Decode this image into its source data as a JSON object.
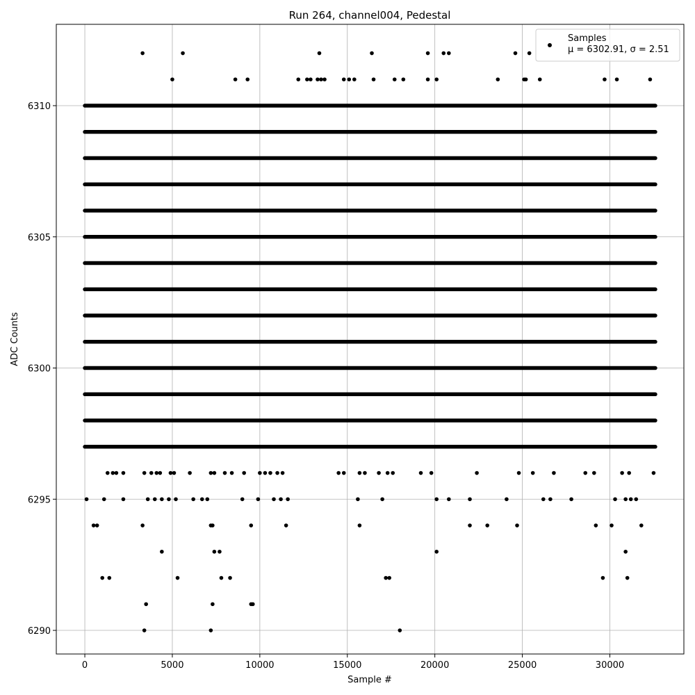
{
  "chart_data": {
    "type": "scatter",
    "title": "Run 264, channel004, Pedestal",
    "xlabel": "Sample #",
    "ylabel": "ADC Counts",
    "xlim": [
      -1630,
      34230
    ],
    "ylim": [
      6289.1,
      6313.1
    ],
    "x_ticks": [
      0,
      5000,
      10000,
      15000,
      20000,
      25000,
      30000
    ],
    "x_tick_labels": [
      "0",
      "5000",
      "10000",
      "15000",
      "20000",
      "25000",
      "30000"
    ],
    "y_ticks": [
      6290,
      6295,
      6300,
      6305,
      6310
    ],
    "y_tick_labels": [
      "6290",
      "6295",
      "6300",
      "6305",
      "6310"
    ],
    "grid": true,
    "legend": {
      "position": "top-right",
      "entries": [
        {
          "name": "Samples",
          "stat": "μ = 6302.91, σ = 2.51"
        }
      ]
    },
    "marker_color": "#000000",
    "series": [
      {
        "name": "Samples",
        "sample_range": [
          0,
          32600
        ],
        "dense_levels": [
          6297,
          6298,
          6299,
          6300,
          6301,
          6302,
          6303,
          6304,
          6305,
          6306,
          6307,
          6308,
          6309,
          6310
        ],
        "points": [
          [
            3300,
            6312
          ],
          [
            5600,
            6312
          ],
          [
            13400,
            6312
          ],
          [
            16400,
            6312
          ],
          [
            19600,
            6312
          ],
          [
            20500,
            6312
          ],
          [
            20800,
            6312
          ],
          [
            24600,
            6312
          ],
          [
            25400,
            6312
          ],
          [
            5000,
            6311
          ],
          [
            8600,
            6311
          ],
          [
            9300,
            6311
          ],
          [
            12200,
            6311
          ],
          [
            12700,
            6311
          ],
          [
            12900,
            6311
          ],
          [
            13300,
            6311
          ],
          [
            13500,
            6311
          ],
          [
            13700,
            6311
          ],
          [
            14800,
            6311
          ],
          [
            15100,
            6311
          ],
          [
            15400,
            6311
          ],
          [
            16500,
            6311
          ],
          [
            17700,
            6311
          ],
          [
            18200,
            6311
          ],
          [
            19600,
            6311
          ],
          [
            20100,
            6311
          ],
          [
            23600,
            6311
          ],
          [
            25100,
            6311
          ],
          [
            25200,
            6311
          ],
          [
            26000,
            6311
          ],
          [
            29700,
            6311
          ],
          [
            30400,
            6311
          ],
          [
            32300,
            6311
          ],
          [
            1300,
            6296
          ],
          [
            1600,
            6296
          ],
          [
            1800,
            6296
          ],
          [
            2200,
            6296
          ],
          [
            3400,
            6296
          ],
          [
            3800,
            6296
          ],
          [
            4100,
            6296
          ],
          [
            4300,
            6296
          ],
          [
            4900,
            6296
          ],
          [
            5100,
            6296
          ],
          [
            6000,
            6296
          ],
          [
            7200,
            6296
          ],
          [
            7400,
            6296
          ],
          [
            8000,
            6296
          ],
          [
            8400,
            6296
          ],
          [
            9100,
            6296
          ],
          [
            10000,
            6296
          ],
          [
            10300,
            6296
          ],
          [
            10600,
            6296
          ],
          [
            11000,
            6296
          ],
          [
            11300,
            6296
          ],
          [
            14500,
            6296
          ],
          [
            14800,
            6296
          ],
          [
            15700,
            6296
          ],
          [
            16000,
            6296
          ],
          [
            16800,
            6296
          ],
          [
            17300,
            6296
          ],
          [
            17600,
            6296
          ],
          [
            19200,
            6296
          ],
          [
            19800,
            6296
          ],
          [
            22400,
            6296
          ],
          [
            24800,
            6296
          ],
          [
            25600,
            6296
          ],
          [
            26800,
            6296
          ],
          [
            28600,
            6296
          ],
          [
            29100,
            6296
          ],
          [
            30700,
            6296
          ],
          [
            31100,
            6296
          ],
          [
            32500,
            6296
          ],
          [
            100,
            6295
          ],
          [
            1100,
            6295
          ],
          [
            2200,
            6295
          ],
          [
            3600,
            6295
          ],
          [
            4000,
            6295
          ],
          [
            4400,
            6295
          ],
          [
            4800,
            6295
          ],
          [
            5200,
            6295
          ],
          [
            6200,
            6295
          ],
          [
            6700,
            6295
          ],
          [
            7000,
            6295
          ],
          [
            9000,
            6295
          ],
          [
            9900,
            6295
          ],
          [
            10800,
            6295
          ],
          [
            11200,
            6295
          ],
          [
            11600,
            6295
          ],
          [
            15600,
            6295
          ],
          [
            17000,
            6295
          ],
          [
            20100,
            6295
          ],
          [
            20800,
            6295
          ],
          [
            22000,
            6295
          ],
          [
            24100,
            6295
          ],
          [
            26200,
            6295
          ],
          [
            26600,
            6295
          ],
          [
            27800,
            6295
          ],
          [
            30300,
            6295
          ],
          [
            30900,
            6295
          ],
          [
            31200,
            6295
          ],
          [
            31500,
            6295
          ],
          [
            500,
            6294
          ],
          [
            700,
            6294
          ],
          [
            3300,
            6294
          ],
          [
            7200,
            6294
          ],
          [
            7300,
            6294
          ],
          [
            9500,
            6294
          ],
          [
            11500,
            6294
          ],
          [
            15700,
            6294
          ],
          [
            22000,
            6294
          ],
          [
            23000,
            6294
          ],
          [
            24700,
            6294
          ],
          [
            29200,
            6294
          ],
          [
            30100,
            6294
          ],
          [
            31800,
            6294
          ],
          [
            4400,
            6293
          ],
          [
            7400,
            6293
          ],
          [
            7700,
            6293
          ],
          [
            20100,
            6293
          ],
          [
            30900,
            6293
          ],
          [
            1000,
            6292
          ],
          [
            1400,
            6292
          ],
          [
            5300,
            6292
          ],
          [
            7800,
            6292
          ],
          [
            8300,
            6292
          ],
          [
            17200,
            6292
          ],
          [
            17400,
            6292
          ],
          [
            29600,
            6292
          ],
          [
            31000,
            6292
          ],
          [
            3500,
            6291
          ],
          [
            7300,
            6291
          ],
          [
            9500,
            6291
          ],
          [
            9600,
            6291
          ],
          [
            3400,
            6290
          ],
          [
            7200,
            6290
          ],
          [
            18000,
            6290
          ]
        ]
      }
    ]
  }
}
